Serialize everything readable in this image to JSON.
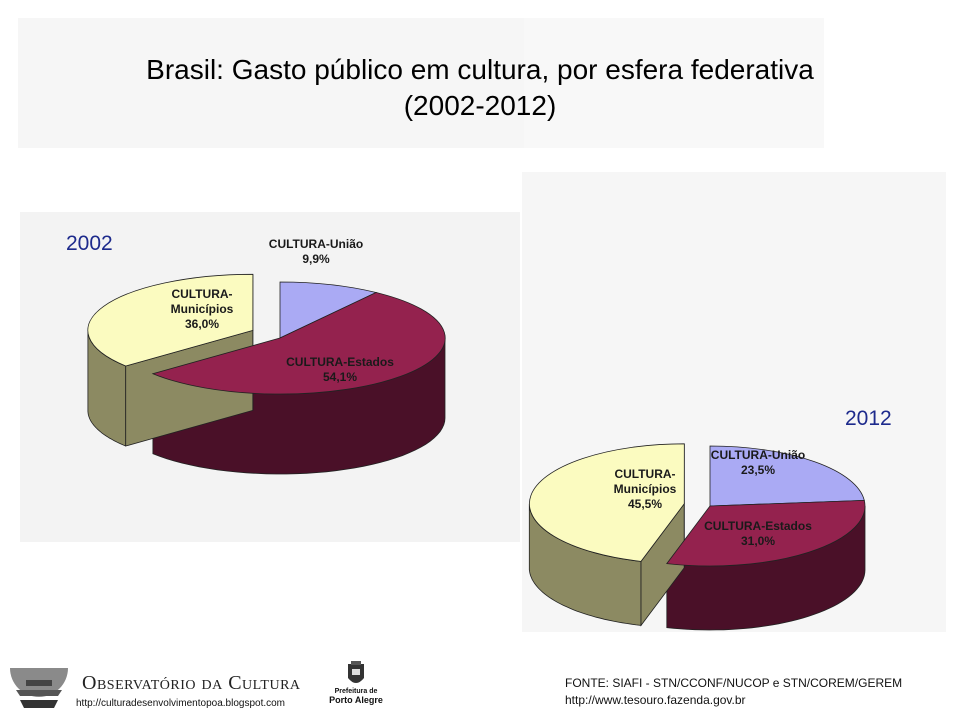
{
  "chart_data": [
    {
      "type": "pie",
      "title": "Brasil: Gasto público em cultura, por esfera federativa",
      "subtitle": "(2002-2012)",
      "year_label": "2002",
      "slices": [
        {
          "label_lines": [
            "CULTURA-União"
          ],
          "value": 9.9,
          "value_label": "9,9%",
          "color": "#aaaaf4",
          "side_color": "#5f5fa0"
        },
        {
          "label_lines": [
            "CULTURA-Estados"
          ],
          "value": 54.1,
          "value_label": "54,1%",
          "color": "#94224e",
          "side_color": "#4a1028"
        },
        {
          "label_lines": [
            "CULTURA-",
            "Municípios"
          ],
          "value": 36.0,
          "value_label": "36,0%",
          "color": "#fbfbc0",
          "side_color": "#8c8a62"
        }
      ]
    },
    {
      "type": "pie",
      "year_label": "2012",
      "slices": [
        {
          "label_lines": [
            "CULTURA-União"
          ],
          "value": 23.5,
          "value_label": "23,5%",
          "color": "#aaaaf4",
          "side_color": "#5f5fa0"
        },
        {
          "label_lines": [
            "CULTURA-Estados"
          ],
          "value": 31.0,
          "value_label": "31,0%",
          "color": "#94224e",
          "side_color": "#4a1028"
        },
        {
          "label_lines": [
            "CULTURA-",
            "Municípios"
          ],
          "value": 45.5,
          "value_label": "45,5%",
          "color": "#fbfbc0",
          "side_color": "#8c8a62"
        }
      ]
    }
  ],
  "footer": {
    "org_name": "Observatório da Cultura",
    "org_url": "http://culturadesenvolvimentopoa.blogspot.com",
    "prefeitura_lines": [
      "Prefeitura de",
      "Porto Alegre"
    ],
    "source_line1": "FONTE: SIAFI - STN/CCONF/NUCOP e STN/COREM/GEREM",
    "source_line2": "http://www.tesouro.fazenda.gov.br"
  }
}
